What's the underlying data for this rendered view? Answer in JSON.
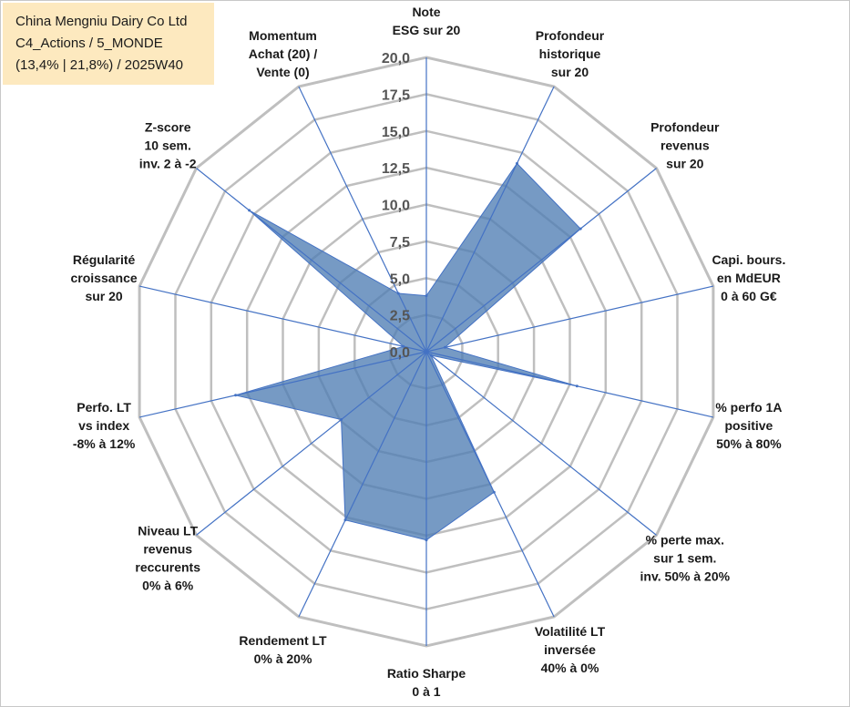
{
  "header": {
    "line1": "China Mengniu Dairy Co Ltd",
    "line2": "C4_Actions / 5_MONDE",
    "line3": "(13,4% | 21,8%) / 2025W40"
  },
  "colors": {
    "fill": "#4f7db3",
    "fill_opacity": "0.78",
    "spoke": "#4472c4",
    "grid": "#bfbfbf",
    "title_bg": "#fde9bf"
  },
  "chart_data": {
    "type": "radar",
    "title": "China Mengniu Dairy Co Ltd",
    "rmin": 0,
    "rmax": 20,
    "tick_values": [
      0,
      2.5,
      5,
      7.5,
      10,
      12.5,
      15,
      17.5,
      20
    ],
    "tick_labels": [
      "0,0",
      "2,5",
      "5,0",
      "7,5",
      "10,0",
      "12,5",
      "15,0",
      "17,5",
      "20,0"
    ],
    "axes": [
      {
        "label": [
          "Note",
          "ESG sur 20"
        ],
        "value": 3.8
      },
      {
        "label": [
          "Profondeur",
          "historique",
          "sur 20"
        ],
        "value": 14.2
      },
      {
        "label": [
          "Profondeur",
          "revenus",
          "sur 20"
        ],
        "value": 13.4
      },
      {
        "label": [
          "Capi. bours.",
          "en MdEUR",
          "0 à 60 G€"
        ],
        "value": 1.3
      },
      {
        "label": [
          "% perfo 1A",
          "positive",
          "50% à 80%"
        ],
        "value": 10.5
      },
      {
        "label": [
          "% perte max.",
          "sur 1 sem.",
          "inv. 50% à 20%"
        ],
        "value": 0.4
      },
      {
        "label": [
          "Volatilité LT",
          "inversée",
          "40% à 0%"
        ],
        "value": 10.6
      },
      {
        "label": [
          "Ratio Sharpe",
          "0 à 1"
        ],
        "value": 12.8
      },
      {
        "label": [
          "Rendement LT",
          "0% à 20%"
        ],
        "value": 12.7
      },
      {
        "label": [
          "Niveau LT",
          "revenus",
          "reccurents",
          "0% à 6%"
        ],
        "value": 7.4
      },
      {
        "label": [
          "Perfo. LT",
          "vs index",
          "-8% à 12%"
        ],
        "value": 13.3
      },
      {
        "label": [
          "Régularité",
          "croissance",
          "sur 20"
        ],
        "value": 1.6
      },
      {
        "label": [
          "Z-score",
          "10 sem.",
          "inv. 2 à -2"
        ],
        "value": 15.4
      },
      {
        "label": [
          "Momentum",
          "Achat (20) /",
          "Vente (0)"
        ],
        "value": 4.4
      }
    ]
  }
}
